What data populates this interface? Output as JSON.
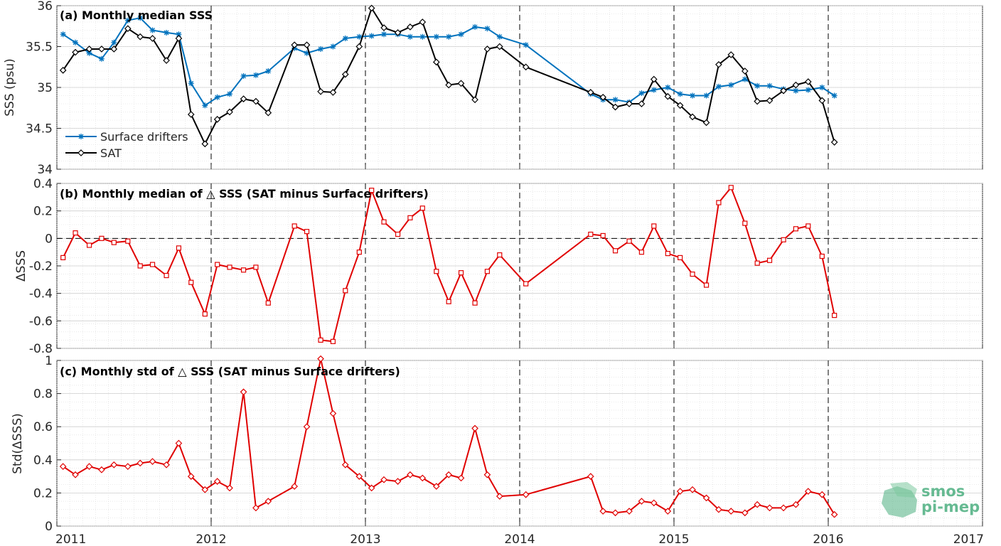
{
  "x_tick_labels": [
    "2011",
    "2012",
    "2013",
    "2014",
    "2015",
    "2016",
    "2017"
  ],
  "logo": {
    "line1": "smos",
    "line2": "pi-mep",
    "color": "#4caf80"
  },
  "colors": {
    "drifters": "#0072bd",
    "sat": "#000000",
    "delta": "#e00000",
    "grid": "#d9d9d9"
  },
  "chart_data": [
    {
      "type": "line",
      "title": "(a) Monthly median SSS",
      "ylabel": "SSS (psu)",
      "xlim": [
        2011,
        2017
      ],
      "ylim": [
        34,
        36
      ],
      "yticks": [
        "34",
        "34.5",
        "35",
        "35.5",
        "36"
      ],
      "grid": true,
      "legend_position": "bottom-left",
      "x": [
        2011.04,
        2011.12,
        2011.21,
        2011.29,
        2011.37,
        2011.46,
        2011.54,
        2011.62,
        2011.71,
        2011.79,
        2011.87,
        2011.96,
        2012.04,
        2012.12,
        2012.21,
        2012.29,
        2012.37,
        2012.54,
        2012.62,
        2012.71,
        2012.79,
        2012.87,
        2012.96,
        2013.04,
        2013.12,
        2013.21,
        2013.29,
        2013.37,
        2013.46,
        2013.54,
        2013.62,
        2013.71,
        2013.79,
        2013.87,
        2014.04,
        2014.46,
        2014.54,
        2014.62,
        2014.71,
        2014.79,
        2014.87,
        2014.96,
        2015.04,
        2015.12,
        2015.21,
        2015.29,
        2015.37,
        2015.46,
        2015.54,
        2015.62,
        2015.71,
        2015.79,
        2015.87,
        2015.96,
        2016.04
      ],
      "series": [
        {
          "name": "Surface drifters",
          "marker": "asterisk",
          "values": [
            35.65,
            35.55,
            35.42,
            35.35,
            35.55,
            35.82,
            35.85,
            35.7,
            35.67,
            35.65,
            35.05,
            34.78,
            34.88,
            34.92,
            35.14,
            35.15,
            35.2,
            35.48,
            35.42,
            35.47,
            35.5,
            35.6,
            35.62,
            35.63,
            35.65,
            35.65,
            35.62,
            35.62,
            35.62,
            35.62,
            35.65,
            35.74,
            35.72,
            35.62,
            35.52,
            34.92,
            34.85,
            34.85,
            34.82,
            34.93,
            34.97,
            35.0,
            34.92,
            34.9,
            34.9,
            35.01,
            35.03,
            35.1,
            35.02,
            35.02,
            34.98,
            34.96,
            34.97,
            35.0,
            34.9
          ]
        },
        {
          "name": "SAT",
          "marker": "diamond",
          "values": [
            35.21,
            35.43,
            35.47,
            35.47,
            35.47,
            35.72,
            35.62,
            35.6,
            35.33,
            35.6,
            34.67,
            34.31,
            34.61,
            34.7,
            34.86,
            34.83,
            34.69,
            35.52,
            35.52,
            34.95,
            34.94,
            35.16,
            35.5,
            35.97,
            35.73,
            35.67,
            35.74,
            35.8,
            35.31,
            35.03,
            35.05,
            34.85,
            35.47,
            35.5,
            35.25,
            34.94,
            34.88,
            34.76,
            34.8,
            34.8,
            35.1,
            34.89,
            34.78,
            34.64,
            34.57,
            35.28,
            35.4,
            35.2,
            34.83,
            34.84,
            34.96,
            35.03,
            35.07,
            34.84,
            34.33
          ]
        }
      ]
    },
    {
      "type": "line",
      "title": "(b) Monthly median of △ SSS (SAT minus Surface drifters)",
      "ylabel": "ΔSSS",
      "xlim": [
        2011,
        2017
      ],
      "ylim": [
        -0.8,
        0.4
      ],
      "yticks": [
        "-0.8",
        "-0.6",
        "-0.4",
        "-0.2",
        "0",
        "0.2",
        "0.4"
      ],
      "zero_line": true,
      "grid": true,
      "x": [
        2011.04,
        2011.12,
        2011.21,
        2011.29,
        2011.37,
        2011.46,
        2011.54,
        2011.62,
        2011.71,
        2011.79,
        2011.87,
        2011.96,
        2012.04,
        2012.12,
        2012.21,
        2012.29,
        2012.37,
        2012.54,
        2012.62,
        2012.71,
        2012.79,
        2012.87,
        2012.96,
        2013.04,
        2013.12,
        2013.21,
        2013.29,
        2013.37,
        2013.46,
        2013.54,
        2013.62,
        2013.71,
        2013.79,
        2013.87,
        2014.04,
        2014.46,
        2014.54,
        2014.62,
        2014.71,
        2014.79,
        2014.87,
        2014.96,
        2015.04,
        2015.12,
        2015.21,
        2015.29,
        2015.37,
        2015.46,
        2015.54,
        2015.62,
        2015.71,
        2015.79,
        2015.87,
        2015.96,
        2016.04
      ],
      "series": [
        {
          "marker": "square",
          "values": [
            -0.14,
            0.04,
            -0.05,
            0.0,
            -0.03,
            -0.02,
            -0.2,
            -0.19,
            -0.27,
            -0.07,
            -0.32,
            -0.55,
            -0.19,
            -0.21,
            -0.23,
            -0.21,
            -0.47,
            0.09,
            0.05,
            -0.74,
            -0.75,
            -0.38,
            -0.1,
            0.35,
            0.12,
            0.03,
            0.15,
            0.22,
            -0.24,
            -0.46,
            -0.25,
            -0.47,
            -0.24,
            -0.12,
            -0.33,
            0.03,
            0.02,
            -0.09,
            -0.02,
            -0.1,
            0.09,
            -0.11,
            -0.14,
            -0.26,
            -0.34,
            0.26,
            0.37,
            0.11,
            -0.18,
            -0.16,
            -0.01,
            0.07,
            0.09,
            -0.13,
            -0.56
          ]
        }
      ]
    },
    {
      "type": "line",
      "title": "(c) Monthly std of △ SSS (SAT minus Surface drifters)",
      "ylabel": "Std(ΔSSS)",
      "xlim": [
        2011,
        2017
      ],
      "ylim": [
        0,
        1
      ],
      "yticks": [
        "0",
        "0.2",
        "0.4",
        "0.6",
        "0.8",
        "1"
      ],
      "grid": true,
      "x": [
        2011.04,
        2011.12,
        2011.21,
        2011.29,
        2011.37,
        2011.46,
        2011.54,
        2011.62,
        2011.71,
        2011.79,
        2011.87,
        2011.96,
        2012.04,
        2012.12,
        2012.21,
        2012.29,
        2012.37,
        2012.54,
        2012.62,
        2012.71,
        2012.79,
        2012.87,
        2012.96,
        2013.04,
        2013.12,
        2013.21,
        2013.29,
        2013.37,
        2013.46,
        2013.54,
        2013.62,
        2013.71,
        2013.79,
        2013.87,
        2014.04,
        2014.46,
        2014.54,
        2014.62,
        2014.71,
        2014.79,
        2014.87,
        2014.96,
        2015.04,
        2015.12,
        2015.21,
        2015.29,
        2015.37,
        2015.46,
        2015.54,
        2015.62,
        2015.71,
        2015.79,
        2015.87,
        2015.96,
        2016.04
      ],
      "series": [
        {
          "marker": "diamond",
          "values": [
            0.36,
            0.31,
            0.36,
            0.34,
            0.37,
            0.36,
            0.38,
            0.39,
            0.37,
            0.5,
            0.3,
            0.22,
            0.27,
            0.23,
            0.81,
            0.11,
            0.15,
            0.24,
            0.6,
            1.01,
            0.68,
            0.37,
            0.3,
            0.23,
            0.28,
            0.27,
            0.31,
            0.29,
            0.24,
            0.31,
            0.29,
            0.59,
            0.31,
            0.18,
            0.19,
            0.3,
            0.09,
            0.08,
            0.09,
            0.15,
            0.14,
            0.09,
            0.21,
            0.22,
            0.17,
            0.1,
            0.09,
            0.08,
            0.13,
            0.11,
            0.11,
            0.13,
            0.21,
            0.19,
            0.07
          ]
        }
      ]
    }
  ]
}
